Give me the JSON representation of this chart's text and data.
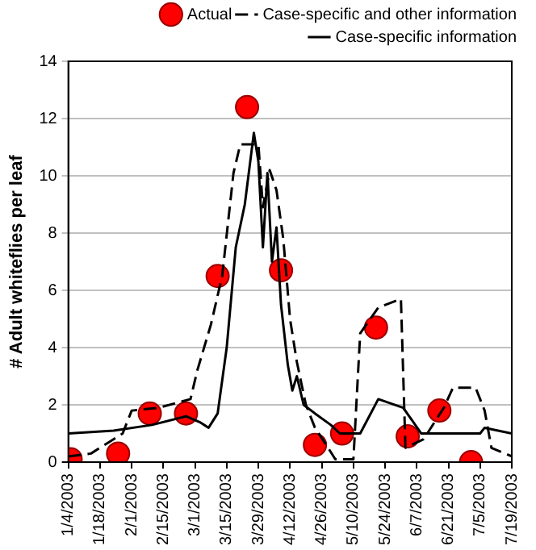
{
  "chart_data": {
    "type": "line",
    "ylabel": "# Adult whiteflies per leaf",
    "xlim": [
      "2003-01-04",
      "2003-07-19"
    ],
    "xticks": [
      {
        "value": "2003-01-04",
        "label": "1/4/2003"
      },
      {
        "value": "2003-01-18",
        "label": "1/18/2003"
      },
      {
        "value": "2003-02-01",
        "label": "2/1/2003"
      },
      {
        "value": "2003-02-15",
        "label": "2/15/2003"
      },
      {
        "value": "2003-03-01",
        "label": "3/1/2003"
      },
      {
        "value": "2003-03-15",
        "label": "3/15/2003"
      },
      {
        "value": "2003-03-29",
        "label": "3/29/2003"
      },
      {
        "value": "2003-04-12",
        "label": "4/12/2003"
      },
      {
        "value": "2003-04-26",
        "label": "4/26/2003"
      },
      {
        "value": "2003-05-10",
        "label": "5/10/2003"
      },
      {
        "value": "2003-05-24",
        "label": "5/24/2003"
      },
      {
        "value": "2003-06-07",
        "label": "6/7/2003"
      },
      {
        "value": "2003-06-21",
        "label": "6/21/2003"
      },
      {
        "value": "2003-07-05",
        "label": "7/5/2003"
      },
      {
        "value": "2003-07-19",
        "label": "7/19/2003"
      }
    ],
    "ylim": [
      0,
      14
    ],
    "yticks": [
      0,
      2,
      4,
      6,
      8,
      10,
      12,
      14
    ],
    "grid": "y",
    "legend": "top right",
    "series": [
      {
        "name": "Actual",
        "type": "scatter",
        "marker": "circle",
        "color": "#ff0000",
        "x": [
          "2003-01-05",
          "2003-01-26",
          "2003-02-09",
          "2003-02-25",
          "2003-03-11",
          "2003-03-24",
          "2003-04-08",
          "2003-04-23",
          "2003-05-05",
          "2003-05-20",
          "2003-06-03",
          "2003-06-17",
          "2003-07-01"
        ],
        "values": [
          0.1,
          0.3,
          1.7,
          1.7,
          6.5,
          12.4,
          6.7,
          0.6,
          1.0,
          4.7,
          0.9,
          1.8,
          0.0
        ]
      },
      {
        "name": "Case-specific and other information",
        "type": "line",
        "line_style": "dashed",
        "color": "#000000",
        "x": [
          "2003-01-04",
          "2003-01-14",
          "2003-01-22",
          "2003-01-28",
          "2003-02-01",
          "2003-02-13",
          "2003-02-27",
          "2003-03-02",
          "2003-03-08",
          "2003-03-13",
          "2003-03-18",
          "2003-03-21",
          "2003-03-29",
          "2003-03-31",
          "2003-04-03",
          "2003-04-06",
          "2003-04-09",
          "2003-04-12",
          "2003-04-15",
          "2003-04-19",
          "2003-04-23",
          "2003-04-28",
          "2003-05-02",
          "2003-05-10",
          "2003-05-13",
          "2003-05-21",
          "2003-05-31",
          "2003-06-02",
          "2003-06-10",
          "2003-06-19",
          "2003-06-23",
          "2003-07-03",
          "2003-07-07",
          "2003-07-10",
          "2003-07-19"
        ],
        "values": [
          0.2,
          0.3,
          0.7,
          1.0,
          1.8,
          1.9,
          2.2,
          3.2,
          4.8,
          6.5,
          10.1,
          11.1,
          11.1,
          8.9,
          10.2,
          9.5,
          7.8,
          5.0,
          3.5,
          2.0,
          1.2,
          0.6,
          0.1,
          0.1,
          4.5,
          5.4,
          5.7,
          0.5,
          0.8,
          1.9,
          2.6,
          2.6,
          1.8,
          0.5,
          0.2
        ]
      },
      {
        "name": "Case-specific information",
        "type": "line",
        "line_style": "solid",
        "color": "#000000",
        "x": [
          "2003-01-04",
          "2003-01-24",
          "2003-02-10",
          "2003-02-25",
          "2003-03-03",
          "2003-03-07",
          "2003-03-11",
          "2003-03-15",
          "2003-03-19",
          "2003-03-23",
          "2003-03-27",
          "2003-03-29",
          "2003-03-31",
          "2003-04-02",
          "2003-04-04",
          "2003-04-06",
          "2003-04-08",
          "2003-04-11",
          "2003-04-13",
          "2003-04-15",
          "2003-04-18",
          "2003-04-23",
          "2003-04-30",
          "2003-05-04",
          "2003-05-13",
          "2003-05-21",
          "2003-06-01",
          "2003-06-09",
          "2003-07-05",
          "2003-07-07",
          "2003-07-19"
        ],
        "values": [
          1.0,
          1.1,
          1.3,
          1.6,
          1.4,
          1.2,
          1.7,
          4.0,
          7.5,
          9.0,
          11.5,
          10.5,
          7.5,
          10.1,
          7.0,
          8.2,
          5.5,
          3.4,
          2.5,
          3.0,
          2.0,
          1.7,
          1.3,
          1.0,
          1.0,
          2.2,
          1.9,
          1.0,
          1.0,
          1.2,
          1.0
        ]
      }
    ]
  }
}
